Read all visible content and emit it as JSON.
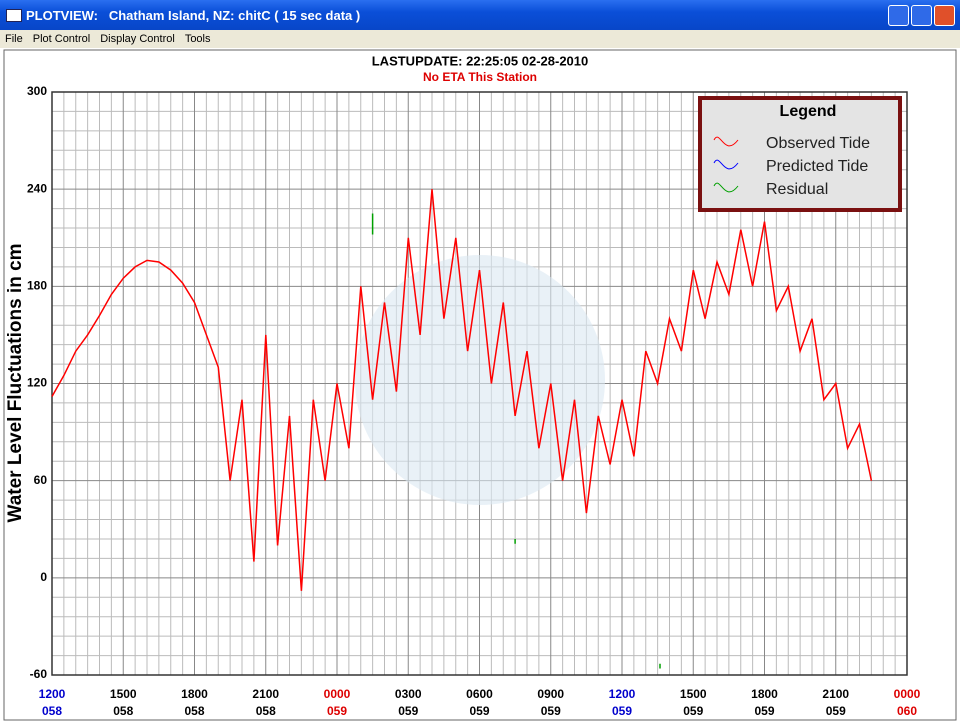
{
  "window": {
    "title": "PLOTVIEW:   Chatham Island, NZ: chitC ( 15 sec data )",
    "menu": [
      "File",
      "Plot Control",
      "Display Control",
      "Tools"
    ]
  },
  "chart_data": {
    "type": "line",
    "title": "LASTUPDATE: 22:25:05  02-28-2010",
    "subtitle": "No ETA This Station",
    "y_label": "Water Level Fluctuations in cm",
    "legend_title": "Legend",
    "legend_corner": "upper right",
    "grid": true,
    "xlim": [
      0,
      36
    ],
    "ylim": [
      -60,
      300
    ],
    "yticks": [
      300,
      240,
      180,
      120,
      60,
      0,
      -60
    ],
    "xticks": [
      {
        "value": 0,
        "label": "1200",
        "day": "058",
        "color": "#0000cc"
      },
      {
        "value": 3,
        "label": "1500",
        "day": "058",
        "color": "#000000"
      },
      {
        "value": 6,
        "label": "1800",
        "day": "058",
        "color": "#000000"
      },
      {
        "value": 9,
        "label": "2100",
        "day": "058",
        "color": "#000000"
      },
      {
        "value": 12,
        "label": "0000",
        "day": "059",
        "color": "#dd0000"
      },
      {
        "value": 15,
        "label": "0300",
        "day": "059",
        "color": "#000000"
      },
      {
        "value": 18,
        "label": "0600",
        "day": "059",
        "color": "#000000"
      },
      {
        "value": 21,
        "label": "0900",
        "day": "059",
        "color": "#000000"
      },
      {
        "value": 24,
        "label": "1200",
        "day": "059",
        "color": "#0000cc"
      },
      {
        "value": 27,
        "label": "1500",
        "day": "059",
        "color": "#000000"
      },
      {
        "value": 30,
        "label": "1800",
        "day": "059",
        "color": "#000000"
      },
      {
        "value": 33,
        "label": "2100",
        "day": "059",
        "color": "#000000"
      },
      {
        "value": 36,
        "label": "0000",
        "day": "060",
        "color": "#dd0000"
      }
    ],
    "series": [
      {
        "name": "Observed Tide",
        "color": "#ff0000",
        "x": [
          0,
          0.5,
          1,
          1.5,
          2,
          2.5,
          3,
          3.5,
          4,
          4.5,
          5,
          5.5,
          6,
          6.5,
          7,
          7.5,
          8,
          8.5,
          9,
          9.5,
          10,
          10.5,
          11,
          11.5,
          12,
          12.5,
          13,
          13.5,
          14,
          14.5,
          15,
          15.5,
          16,
          16.5,
          17,
          17.5,
          18,
          18.5,
          19,
          19.5,
          20,
          20.5,
          21,
          21.5,
          22,
          22.5,
          23,
          23.5,
          24,
          24.5,
          25,
          25.5,
          26,
          26.5,
          27,
          27.5,
          28,
          28.5,
          29,
          29.5,
          30,
          30.5,
          31,
          31.5,
          32,
          32.5,
          33,
          33.5,
          34,
          34.5
        ],
        "values": [
          112,
          125,
          140,
          150,
          162,
          175,
          185,
          192,
          196,
          195,
          190,
          182,
          170,
          150,
          130,
          60,
          110,
          10,
          150,
          20,
          100,
          -8,
          110,
          60,
          120,
          80,
          180,
          110,
          170,
          115,
          210,
          150,
          240,
          160,
          210,
          140,
          190,
          120,
          170,
          100,
          140,
          80,
          120,
          60,
          110,
          40,
          100,
          70,
          110,
          75,
          140,
          120,
          160,
          140,
          190,
          160,
          195,
          175,
          215,
          180,
          220,
          165,
          180,
          140,
          160,
          110,
          120,
          80,
          95,
          60
        ]
      },
      {
        "name": "Predicted Tide",
        "color": "#0000ff",
        "x": [],
        "values": []
      },
      {
        "name": "Residual",
        "color": "#00a000",
        "x": [
          13.5,
          13.5,
          13.5,
          19.5,
          19.5,
          19.5,
          25.6,
          25.6
        ],
        "values": [
          225,
          212,
          null,
          24,
          21,
          null,
          -53,
          -56
        ]
      }
    ]
  }
}
